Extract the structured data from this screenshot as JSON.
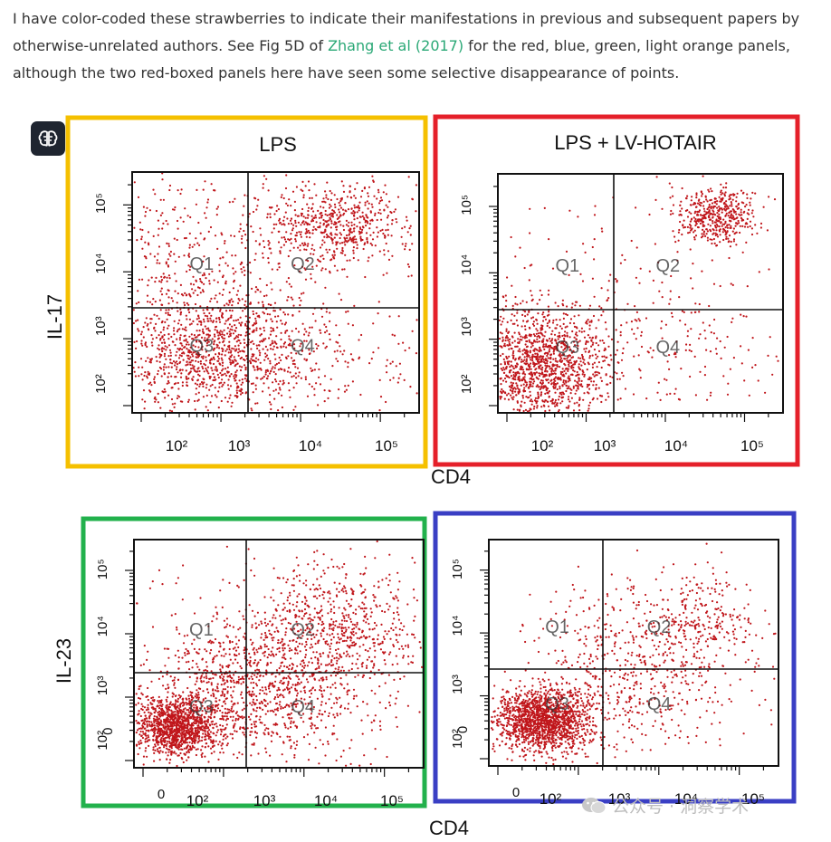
{
  "intro": {
    "before_link": "I have color-coded these strawberries to indicate their manifestations in previous and subsequent papers by otherwise-unrelated authors. See Fig 5D of ",
    "link_text": "Zhang et al (2017)",
    "after_link": " for the red, blue, green, light orange panels, although the two red-boxed panels here have seen some selective disappearance of points."
  },
  "figure": {
    "panels": [
      {
        "id": "top-left",
        "title": "LPS",
        "border_color": "#f5c000"
      },
      {
        "id": "top-right",
        "title": "LPS + LV-HOTAIR",
        "border_color": "#e5202a"
      },
      {
        "id": "bottom-left",
        "title": "",
        "border_color": "#22b14c"
      },
      {
        "id": "bottom-right",
        "title": "",
        "border_color": "#3a3fc4"
      }
    ],
    "quadrant_labels": [
      "Q1",
      "Q2",
      "Q3",
      "Q4"
    ],
    "top_y_axis_label": "IL-17",
    "bottom_y_axis_label": "IL-23",
    "top_x_axis_label": "CD4",
    "bottom_x_axis_label": "CD4",
    "y_ticks": [
      "10²",
      "10³",
      "10⁴",
      "10⁵"
    ],
    "top_x_ticks": [
      "10²",
      "10³",
      "10⁴",
      "10⁵"
    ],
    "bottom_x_ticks": [
      "0",
      "10²",
      "10³",
      "10⁴",
      "10⁵"
    ],
    "bottom_y_zero": "0",
    "dot_color": "#c0161b"
  },
  "toolbar": {
    "brain_button_icon": "brain-icon"
  },
  "watermark": {
    "text": "公众号 · 洞察学术"
  }
}
